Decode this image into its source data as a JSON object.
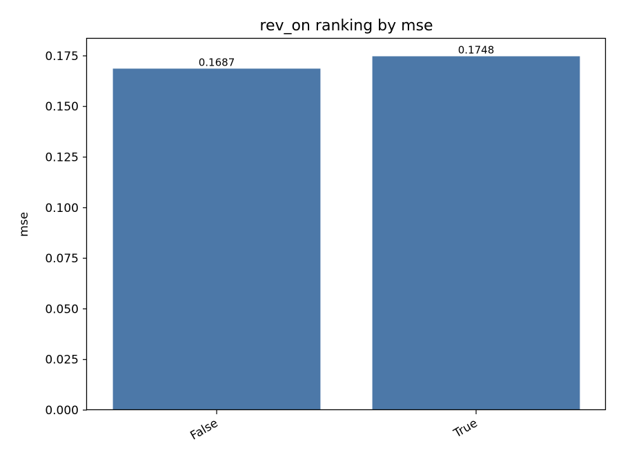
{
  "chart_data": {
    "type": "bar",
    "title": "rev_on ranking by mse",
    "xlabel": "",
    "ylabel": "mse",
    "categories": [
      "False",
      "True"
    ],
    "values": [
      0.1687,
      0.1748
    ],
    "value_labels": [
      "0.1687",
      "0.1748"
    ],
    "ylim": [
      0,
      0.1835
    ],
    "yticks": [
      0.0,
      0.025,
      0.05,
      0.075,
      0.1,
      0.125,
      0.15,
      0.175
    ],
    "ytick_labels": [
      "0.000",
      "0.025",
      "0.050",
      "0.075",
      "0.100",
      "0.125",
      "0.150",
      "0.175"
    ],
    "grid": false,
    "bar_color": "#4c78a8"
  }
}
